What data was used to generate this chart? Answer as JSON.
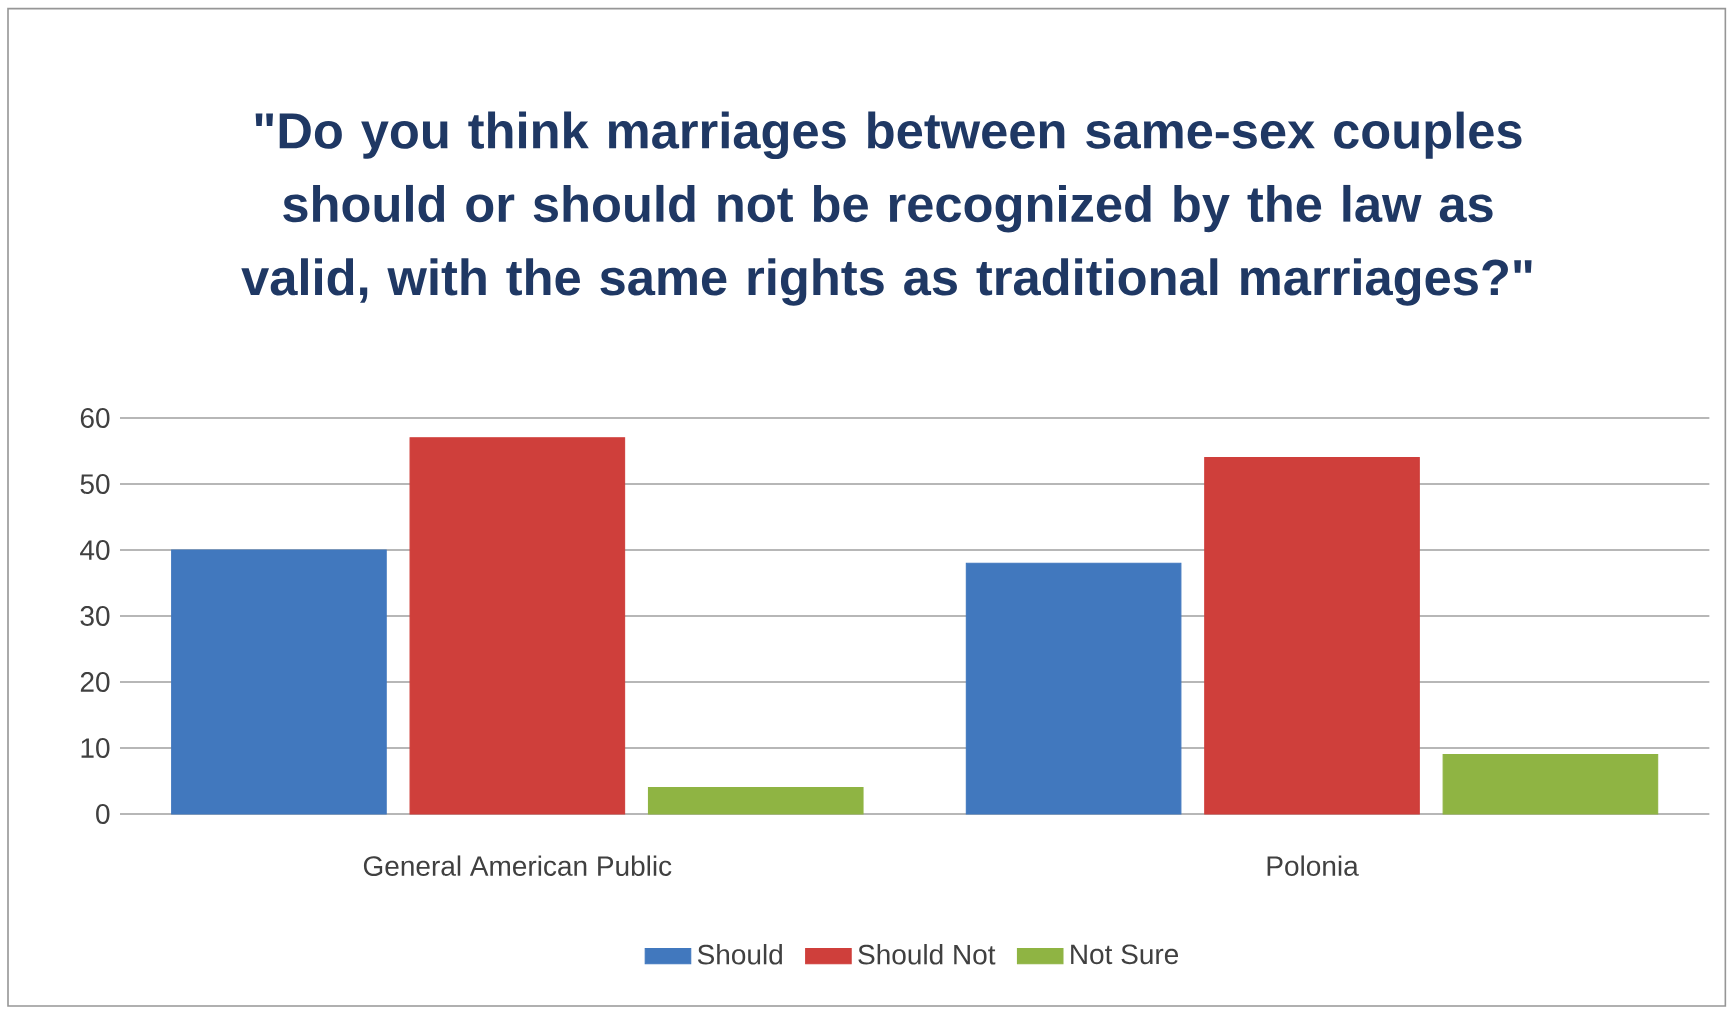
{
  "chart_data": {
    "type": "bar",
    "title": "\"Do you think marriages between same-sex couples should or should not be recognized by the law as valid, with the same rights as traditional marriages?\"",
    "categories": [
      "General American Public",
      "Polonia"
    ],
    "series": [
      {
        "name": "Should",
        "color": "#4178be",
        "values": [
          40,
          38
        ]
      },
      {
        "name": "Should Not",
        "color": "#cf3f3b",
        "values": [
          57,
          54
        ]
      },
      {
        "name": "Not Sure",
        "color": "#8fb443",
        "values": [
          4,
          9
        ]
      }
    ],
    "ylim": [
      0,
      60
    ],
    "yticks": [
      0,
      10,
      20,
      30,
      40,
      50,
      60
    ],
    "grid": "y",
    "legend": "bottom"
  }
}
